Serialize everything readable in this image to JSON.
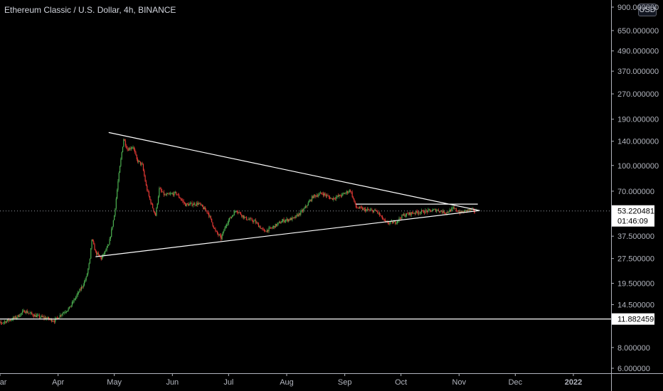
{
  "header": {
    "title": "Ethereum Classic / U.S. Dollar, 4h, BINANCE",
    "currency": "USD"
  },
  "chart_data": {
    "type": "candlestick",
    "title": "Ethereum Classic / U.S. Dollar, 4h, BINANCE",
    "y_scale": "log",
    "ylim": [
      5.5,
      950
    ],
    "y_ticks": [
      {
        "value": 900,
        "label": "900.000000"
      },
      {
        "value": 650,
        "label": "650.000000"
      },
      {
        "value": 490,
        "label": "490.000000"
      },
      {
        "value": 370,
        "label": "370.000000"
      },
      {
        "value": 270,
        "label": "270.000000"
      },
      {
        "value": 190,
        "label": "190.000000"
      },
      {
        "value": 140,
        "label": "140.000000"
      },
      {
        "value": 100,
        "label": "100.000000"
      },
      {
        "value": 70,
        "label": "70.000000"
      },
      {
        "value": 37.5,
        "label": "37.500000"
      },
      {
        "value": 27.5,
        "label": "27.500000"
      },
      {
        "value": 19.5,
        "label": "19.500000"
      },
      {
        "value": 14.5,
        "label": "14.500000"
      },
      {
        "value": 8,
        "label": "8.000000"
      },
      {
        "value": 6,
        "label": "6.000000"
      }
    ],
    "x_ticks": [
      {
        "date": "2021-03-01",
        "label": "Mar"
      },
      {
        "date": "2021-04-01",
        "label": "Apr"
      },
      {
        "date": "2021-05-01",
        "label": "May"
      },
      {
        "date": "2021-06-01",
        "label": "Jun"
      },
      {
        "date": "2021-07-01",
        "label": "Jul"
      },
      {
        "date": "2021-08-01",
        "label": "Aug"
      },
      {
        "date": "2021-09-01",
        "label": "Sep"
      },
      {
        "date": "2021-10-01",
        "label": "Oct"
      },
      {
        "date": "2021-11-01",
        "label": "Nov"
      },
      {
        "date": "2021-12-01",
        "label": "Dec"
      },
      {
        "date": "2022-01-01",
        "label": "2022"
      }
    ],
    "price_path": [
      [
        "2021-02-25",
        10.8
      ],
      [
        "2021-03-05",
        11.6
      ],
      [
        "2021-03-10",
        12.2
      ],
      [
        "2021-03-14",
        13.3
      ],
      [
        "2021-03-20",
        12.4
      ],
      [
        "2021-03-26",
        12.0
      ],
      [
        "2021-03-30",
        11.6
      ],
      [
        "2021-04-03",
        12.8
      ],
      [
        "2021-04-07",
        13.8
      ],
      [
        "2021-04-11",
        16.5
      ],
      [
        "2021-04-14",
        18.8
      ],
      [
        "2021-04-16",
        21.0
      ],
      [
        "2021-04-18",
        27.0
      ],
      [
        "2021-04-19",
        36.0
      ],
      [
        "2021-04-21",
        30.0
      ],
      [
        "2021-04-24",
        27.5
      ],
      [
        "2021-04-28",
        33.0
      ],
      [
        "2021-05-01",
        50.0
      ],
      [
        "2021-05-03",
        80.0
      ],
      [
        "2021-05-05",
        120.0
      ],
      [
        "2021-05-06",
        145.0
      ],
      [
        "2021-05-08",
        125.0
      ],
      [
        "2021-05-11",
        130.0
      ],
      [
        "2021-05-13",
        108.0
      ],
      [
        "2021-05-16",
        100.0
      ],
      [
        "2021-05-18",
        75.0
      ],
      [
        "2021-05-20",
        62.0
      ],
      [
        "2021-05-23",
        50.0
      ],
      [
        "2021-05-25",
        72.0
      ],
      [
        "2021-05-28",
        66.0
      ],
      [
        "2021-06-03",
        68.0
      ],
      [
        "2021-06-08",
        58.0
      ],
      [
        "2021-06-15",
        59.0
      ],
      [
        "2021-06-20",
        52.0
      ],
      [
        "2021-06-24",
        40.0
      ],
      [
        "2021-06-27",
        36.5
      ],
      [
        "2021-06-30",
        45.0
      ],
      [
        "2021-07-05",
        54.0
      ],
      [
        "2021-07-10",
        48.0
      ],
      [
        "2021-07-15",
        46.0
      ],
      [
        "2021-07-20",
        40.0
      ],
      [
        "2021-07-24",
        42.0
      ],
      [
        "2021-07-30",
        46.5
      ],
      [
        "2021-08-05",
        48.0
      ],
      [
        "2021-08-10",
        54.0
      ],
      [
        "2021-08-15",
        65.0
      ],
      [
        "2021-08-20",
        68.0
      ],
      [
        "2021-08-25",
        63.0
      ],
      [
        "2021-08-30",
        66.0
      ],
      [
        "2021-09-04",
        71.0
      ],
      [
        "2021-09-07",
        56.0
      ],
      [
        "2021-09-12",
        54.0
      ],
      [
        "2021-09-18",
        53.0
      ],
      [
        "2021-09-23",
        45.0
      ],
      [
        "2021-09-28",
        45.5
      ],
      [
        "2021-10-02",
        50.0
      ],
      [
        "2021-10-08",
        52.0
      ],
      [
        "2021-10-15",
        53.0
      ],
      [
        "2021-10-20",
        54.0
      ],
      [
        "2021-10-25",
        52.0
      ],
      [
        "2021-10-29",
        55.0
      ],
      [
        "2021-11-02",
        52.0
      ],
      [
        "2021-11-06",
        54.0
      ],
      [
        "2021-11-10",
        53.2
      ]
    ],
    "current_price": {
      "value": 53.220481,
      "label": "53.220481",
      "countdown": "01:46:09"
    },
    "horizontal_level": {
      "value": 11.882459,
      "label": "11.882459"
    },
    "trendlines": [
      {
        "name": "upper",
        "from": [
          "2021-04-28",
          158
        ],
        "to": [
          "2021-11-12",
          53.5
        ]
      },
      {
        "name": "lower",
        "from": [
          "2021-04-21",
          28.2
        ],
        "to": [
          "2021-11-12",
          53.5
        ]
      },
      {
        "name": "box-top",
        "from": [
          "2021-09-07",
          58.5
        ],
        "to": [
          "2021-11-11",
          58.5
        ]
      }
    ]
  }
}
